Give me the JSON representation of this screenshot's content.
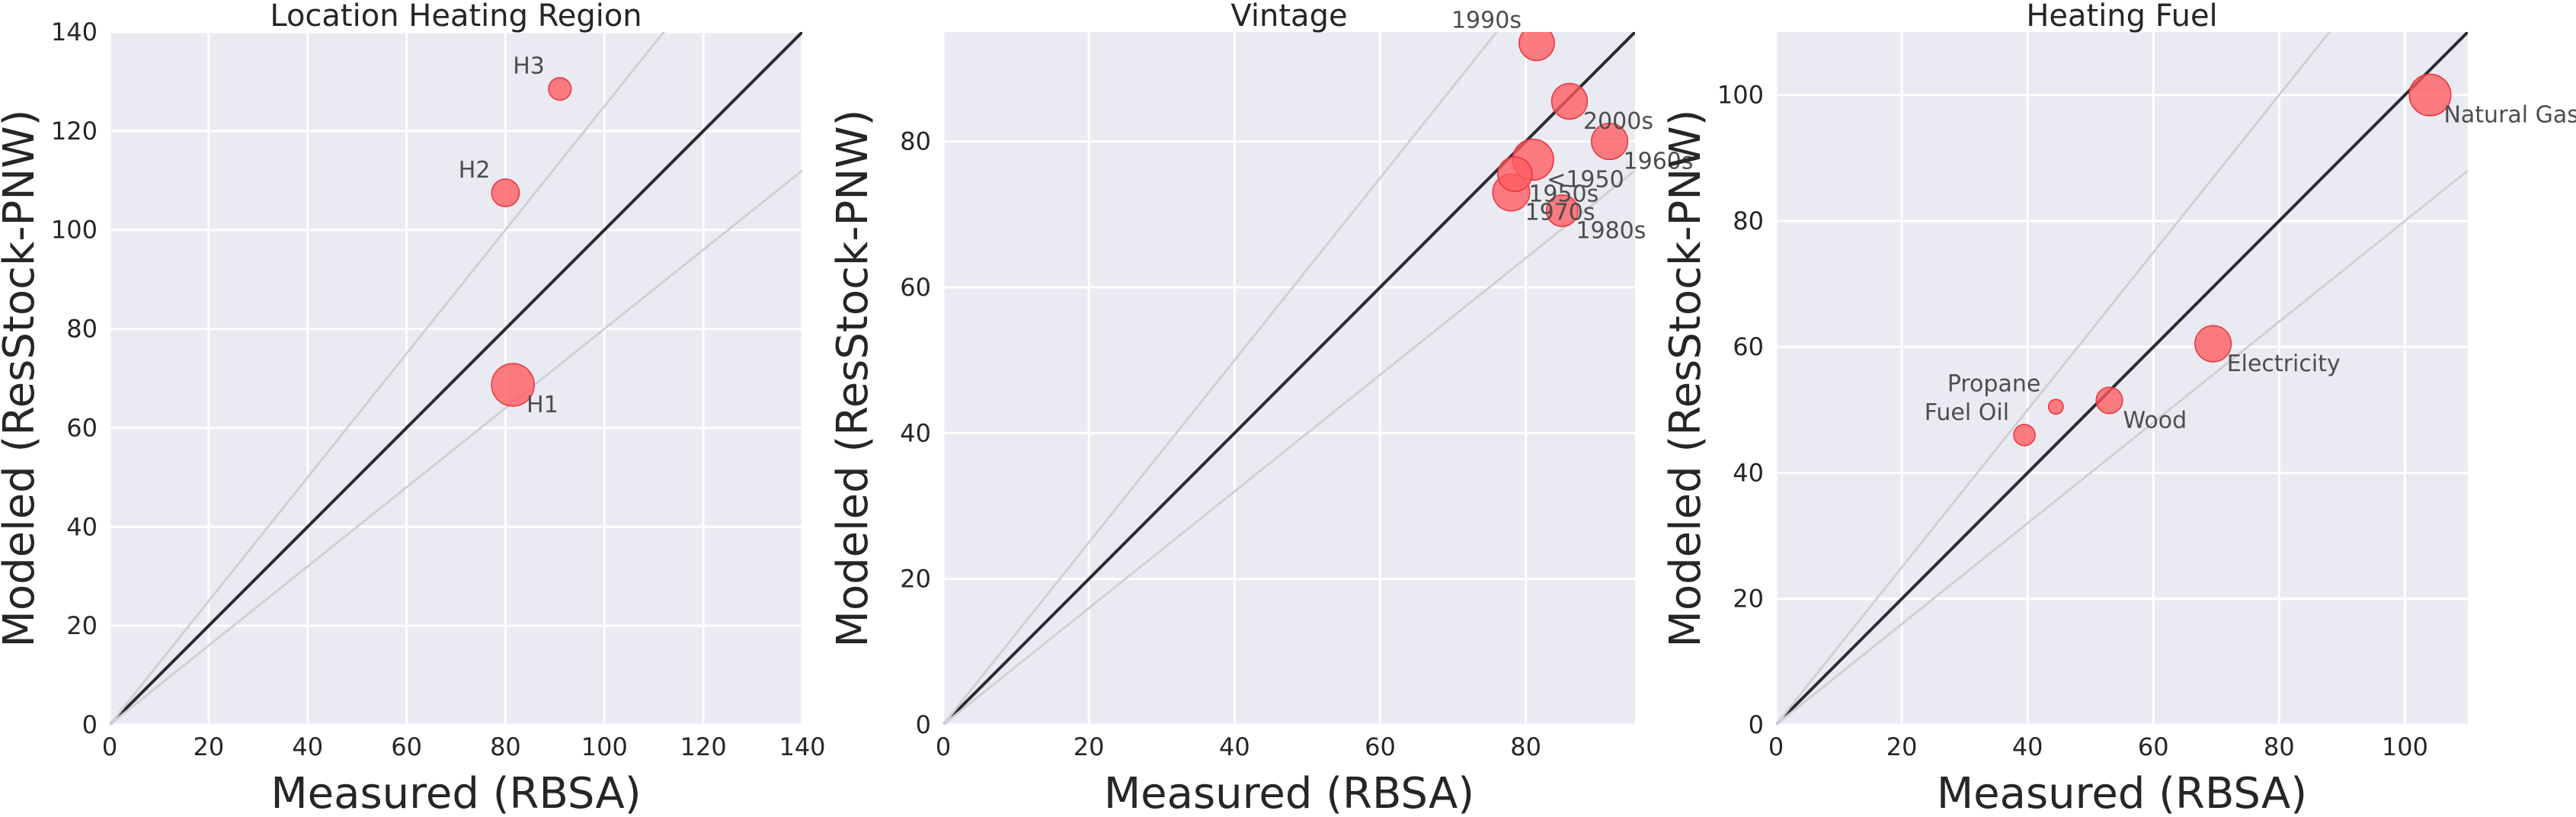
{
  "chart_data": [
    {
      "type": "scatter",
      "title": "Location Heating Region",
      "xlabel": "Measured (RBSA)",
      "ylabel": "Modeled (ResStock-PNW)",
      "xlim": [
        0,
        140
      ],
      "ylim": [
        0,
        140
      ],
      "xticks": [
        0,
        20,
        40,
        60,
        80,
        100,
        120,
        140
      ],
      "yticks": [
        0,
        20,
        40,
        60,
        80,
        100,
        120,
        140
      ],
      "grid": true,
      "reference_lines": [
        {
          "kind": "identity",
          "slope": 1.0,
          "color": "#2b2b33"
        },
        {
          "kind": "bound",
          "slope": 1.25,
          "color": "#d0d0d4"
        },
        {
          "kind": "bound",
          "slope": 0.8,
          "color": "#d0d0d4"
        }
      ],
      "points": [
        {
          "label": "H1",
          "x": 81.5,
          "y": 68.7,
          "size": 1.0,
          "label_pos": "below-right"
        },
        {
          "label": "H2",
          "x": 80.0,
          "y": 107.5,
          "size": 0.42,
          "label_pos": "above-left"
        },
        {
          "label": "H3",
          "x": 91.0,
          "y": 128.5,
          "size": 0.28,
          "label_pos": "above-left"
        }
      ]
    },
    {
      "type": "scatter",
      "title": "Vintage",
      "xlabel": "Measured (RBSA)",
      "ylabel": "Modeled (ResStock-PNW)",
      "xlim": [
        0,
        95
      ],
      "ylim": [
        0,
        95
      ],
      "xticks": [
        0,
        20,
        40,
        60,
        80
      ],
      "yticks": [
        0,
        20,
        40,
        60,
        80
      ],
      "grid": true,
      "reference_lines": [
        {
          "kind": "identity",
          "slope": 1.0,
          "color": "#2b2b33"
        },
        {
          "kind": "bound",
          "slope": 1.25,
          "color": "#d0d0d4"
        },
        {
          "kind": "bound",
          "slope": 0.8,
          "color": "#d0d0d4"
        }
      ],
      "points": [
        {
          "label": "1990s",
          "x": 81.5,
          "y": 93.5,
          "size": 0.68,
          "label_pos": "above-left"
        },
        {
          "label": "2000s",
          "x": 86.0,
          "y": 85.5,
          "size": 0.7,
          "label_pos": "below-right"
        },
        {
          "label": "1960s",
          "x": 91.5,
          "y": 80.0,
          "size": 0.72,
          "label_pos": "below-right"
        },
        {
          "label": "<1950",
          "x": 81.0,
          "y": 77.5,
          "size": 0.92,
          "label_pos": "below-right"
        },
        {
          "label": "1950s",
          "x": 78.5,
          "y": 75.5,
          "size": 0.65,
          "label_pos": "below-right"
        },
        {
          "label": "1970s",
          "x": 78.0,
          "y": 73.0,
          "size": 0.75,
          "label_pos": "below-right"
        },
        {
          "label": "1980s",
          "x": 85.0,
          "y": 70.5,
          "size": 0.55,
          "label_pos": "below-right"
        }
      ]
    },
    {
      "type": "scatter",
      "title": "Heating Fuel",
      "xlabel": "Measured (RBSA)",
      "ylabel": "Modeled (ResStock-PNW)",
      "xlim": [
        0,
        110
      ],
      "ylim": [
        0,
        110
      ],
      "xticks": [
        0,
        20,
        40,
        60,
        80,
        100
      ],
      "yticks": [
        0,
        20,
        40,
        60,
        80,
        100
      ],
      "grid": true,
      "reference_lines": [
        {
          "kind": "identity",
          "slope": 1.0,
          "color": "#2b2b33"
        },
        {
          "kind": "bound",
          "slope": 1.25,
          "color": "#d0d0d4"
        },
        {
          "kind": "bound",
          "slope": 0.8,
          "color": "#d0d0d4"
        }
      ],
      "points": [
        {
          "label": "Natural Gas",
          "x": 104.0,
          "y": 100.0,
          "size": 0.95,
          "label_pos": "below-right"
        },
        {
          "label": "Electricity",
          "x": 69.5,
          "y": 60.5,
          "size": 0.72,
          "label_pos": "below-right"
        },
        {
          "label": "Wood",
          "x": 53.0,
          "y": 51.5,
          "size": 0.38,
          "label_pos": "below-right"
        },
        {
          "label": "Propane",
          "x": 44.5,
          "y": 50.5,
          "size": 0.12,
          "label_pos": "above-left"
        },
        {
          "label": "Fuel Oil",
          "x": 39.5,
          "y": 46.0,
          "size": 0.25,
          "label_pos": "above-left"
        }
      ]
    }
  ],
  "colors": {
    "marker_fill": "#ff5a5f",
    "marker_stroke": "#e8333a",
    "axes_background": "#eaeaf2",
    "gridline": "#ffffff",
    "identity_line": "#2b2b33",
    "bound_line": "#d0d0d4"
  }
}
